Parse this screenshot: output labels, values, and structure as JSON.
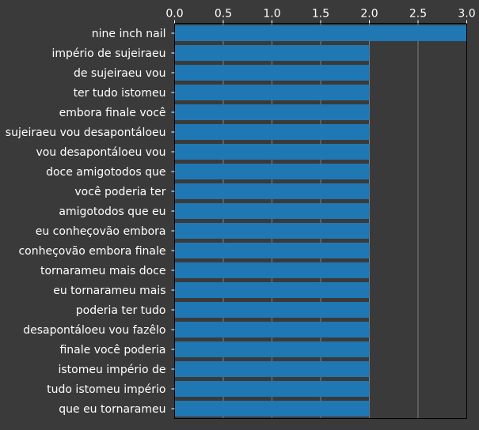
{
  "chart_data": {
    "type": "bar",
    "orientation": "horizontal",
    "categories": [
      "nine inch nail",
      "império de sujeiraeu",
      "de sujeiraeu vou",
      "ter tudo istomeu",
      "embora finale você",
      "sujeiraeu vou desapontáloeu",
      "vou desapontáloeu vou",
      "doce amigotodos que",
      "você poderia ter",
      "amigotodos que eu",
      "eu conheçovão embora",
      "conheçovão embora finale",
      "tornarameu mais doce",
      "eu tornarameu mais",
      "poderia ter tudo",
      "desapontáloeu vou fazêlo",
      "finale você poderia",
      "istomeu império de",
      "tudo istomeu império",
      "que eu tornarameu"
    ],
    "values": [
      3,
      2,
      2,
      2,
      2,
      2,
      2,
      2,
      2,
      2,
      2,
      2,
      2,
      2,
      2,
      2,
      2,
      2,
      2,
      2
    ],
    "xlim": [
      0,
      3
    ],
    "xticks": [
      "0.0",
      "0.5",
      "1.0",
      "1.5",
      "2.0",
      "2.5",
      "3.0"
    ],
    "xtick_values": [
      0,
      0.5,
      1,
      1.5,
      2,
      2.5,
      3
    ],
    "xaxis_position": "top",
    "grid": "vertical",
    "title": "",
    "xlabel": "",
    "ylabel": "",
    "colors": {
      "background": "#3a3a3a",
      "bar": "#1f77b4",
      "grid": "#808080",
      "axis": "#000000",
      "text": "#ffffff"
    }
  }
}
